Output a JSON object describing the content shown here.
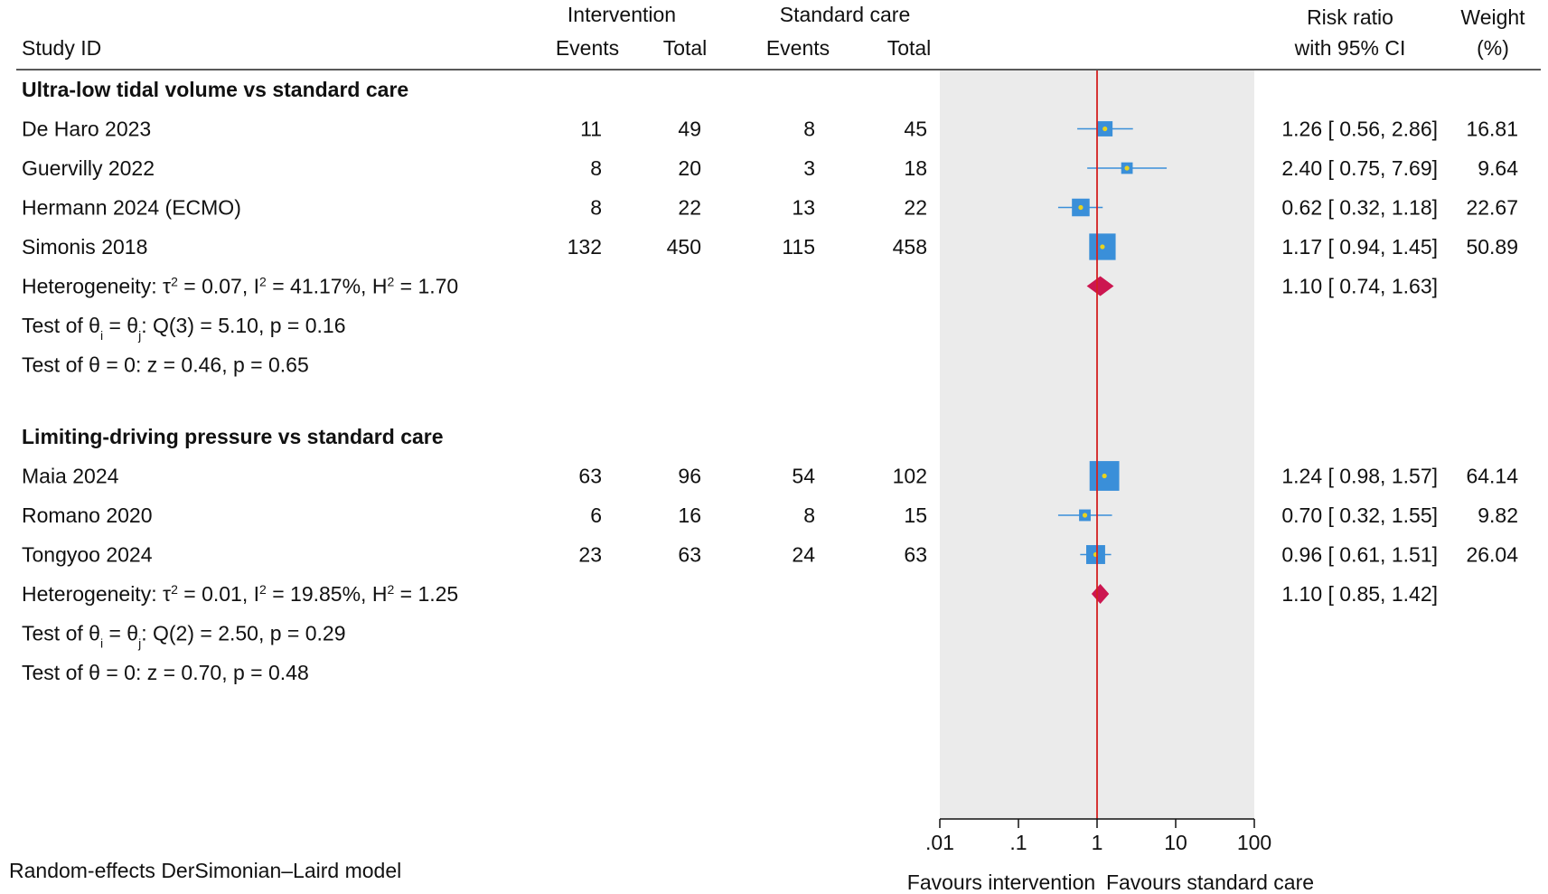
{
  "chart_data": {
    "type": "forest",
    "xscale": "log",
    "xlim": [
      0.01,
      100
    ],
    "reference_line": 1,
    "xticks": [
      ".01",
      ".1",
      "1",
      "10",
      "100"
    ],
    "xtick_values": [
      0.01,
      0.1,
      1,
      10,
      100
    ],
    "x_favours_left": "Favours intervention",
    "x_favours_right": "Favours standard care",
    "footnote": "Random-effects DerSimonian–Laird model",
    "headers": {
      "study": "Study ID",
      "intervention_group": "Intervention",
      "standard_group": "Standard care",
      "events": "Events",
      "total": "Total",
      "rr_line1": "Risk ratio",
      "rr_line2": "with 95% CI",
      "weight_line1": "Weight",
      "weight_line2": "(%)"
    },
    "colors": {
      "study_marker": "#3a8fd9",
      "study_marker_center": "#e8d21f",
      "ci_line": "#3a8fd9",
      "pooled_diamond": "#cc1650",
      "reference_line": "#d42020",
      "shaded_band": "#ebebeb"
    },
    "subgroups": [
      {
        "title": "Ultra-low tidal volume vs standard care",
        "studies": [
          {
            "name": "De Haro 2023",
            "int_events": "11",
            "int_total": "49",
            "std_events": "8",
            "std_total": "45",
            "rr": 1.26,
            "lo": 0.56,
            "hi": 2.86,
            "rr_text": "1.26 [ 0.56,  2.86]",
            "weight": 16.81,
            "weight_text": "16.81"
          },
          {
            "name": "Guervilly 2022",
            "int_events": "8",
            "int_total": "20",
            "std_events": "3",
            "std_total": "18",
            "rr": 2.4,
            "lo": 0.75,
            "hi": 7.69,
            "rr_text": "2.40 [ 0.75,  7.69]",
            "weight": 9.64,
            "weight_text": "9.64"
          },
          {
            "name": "Hermann 2024 (ECMO)",
            "int_events": "8",
            "int_total": "22",
            "std_events": "13",
            "std_total": "22",
            "rr": 0.62,
            "lo": 0.32,
            "hi": 1.18,
            "rr_text": "0.62 [ 0.32,  1.18]",
            "weight": 22.67,
            "weight_text": "22.67"
          },
          {
            "name": "Simonis 2018",
            "int_events": "132",
            "int_total": "450",
            "std_events": "115",
            "std_total": "458",
            "rr": 1.17,
            "lo": 0.94,
            "hi": 1.45,
            "rr_text": "1.17 [ 0.94,  1.45]",
            "weight": 50.89,
            "weight_text": "50.89"
          }
        ],
        "pooled": {
          "rr": 1.1,
          "lo": 0.74,
          "hi": 1.63,
          "rr_text": "1.10 [ 0.74,  1.63]"
        },
        "heterogeneity": {
          "label": "Heterogeneity: ",
          "tau_sym": "τ",
          "tau2": " = 0.07, I",
          "i2": " = 41.17%, H",
          "h2": " = 1.70"
        },
        "homogeneity": {
          "prefix": "Test of θ",
          "i_sub": "i",
          "eq": " = θ",
          "j_sub": "j",
          "rest": ": Q(3) = 5.10, p = 0.16"
        },
        "effect_test": "Test of θ = 0: z = 0.46, p = 0.65"
      },
      {
        "title": "Limiting-driving pressure vs standard care",
        "studies": [
          {
            "name": "Maia 2024",
            "int_events": "63",
            "int_total": "96",
            "std_events": "54",
            "std_total": "102",
            "rr": 1.24,
            "lo": 0.98,
            "hi": 1.57,
            "rr_text": "1.24 [ 0.98,  1.57]",
            "weight": 64.14,
            "weight_text": "64.14"
          },
          {
            "name": "Romano 2020",
            "int_events": "6",
            "int_total": "16",
            "std_events": "8",
            "std_total": "15",
            "rr": 0.7,
            "lo": 0.32,
            "hi": 1.55,
            "rr_text": "0.70 [ 0.32,  1.55]",
            "weight": 9.82,
            "weight_text": "9.82"
          },
          {
            "name": "Tongyoo 2024",
            "int_events": "23",
            "int_total": "63",
            "std_events": "24",
            "std_total": "63",
            "rr": 0.96,
            "lo": 0.61,
            "hi": 1.51,
            "rr_text": "0.96 [ 0.61,  1.51]",
            "weight": 26.04,
            "weight_text": "26.04"
          }
        ],
        "pooled": {
          "rr": 1.1,
          "lo": 0.85,
          "hi": 1.42,
          "rr_text": "1.10 [ 0.85,  1.42]"
        },
        "heterogeneity": {
          "label": "Heterogeneity: ",
          "tau_sym": "τ",
          "tau2": " = 0.01, I",
          "i2": " = 19.85%, H",
          "h2": " = 1.25"
        },
        "homogeneity": {
          "prefix": "Test of θ",
          "i_sub": "i",
          "eq": " = θ",
          "j_sub": "j",
          "rest": ": Q(2) = 2.50, p = 0.29"
        },
        "effect_test": "Test of θ = 0: z = 0.70, p = 0.48"
      }
    ]
  }
}
